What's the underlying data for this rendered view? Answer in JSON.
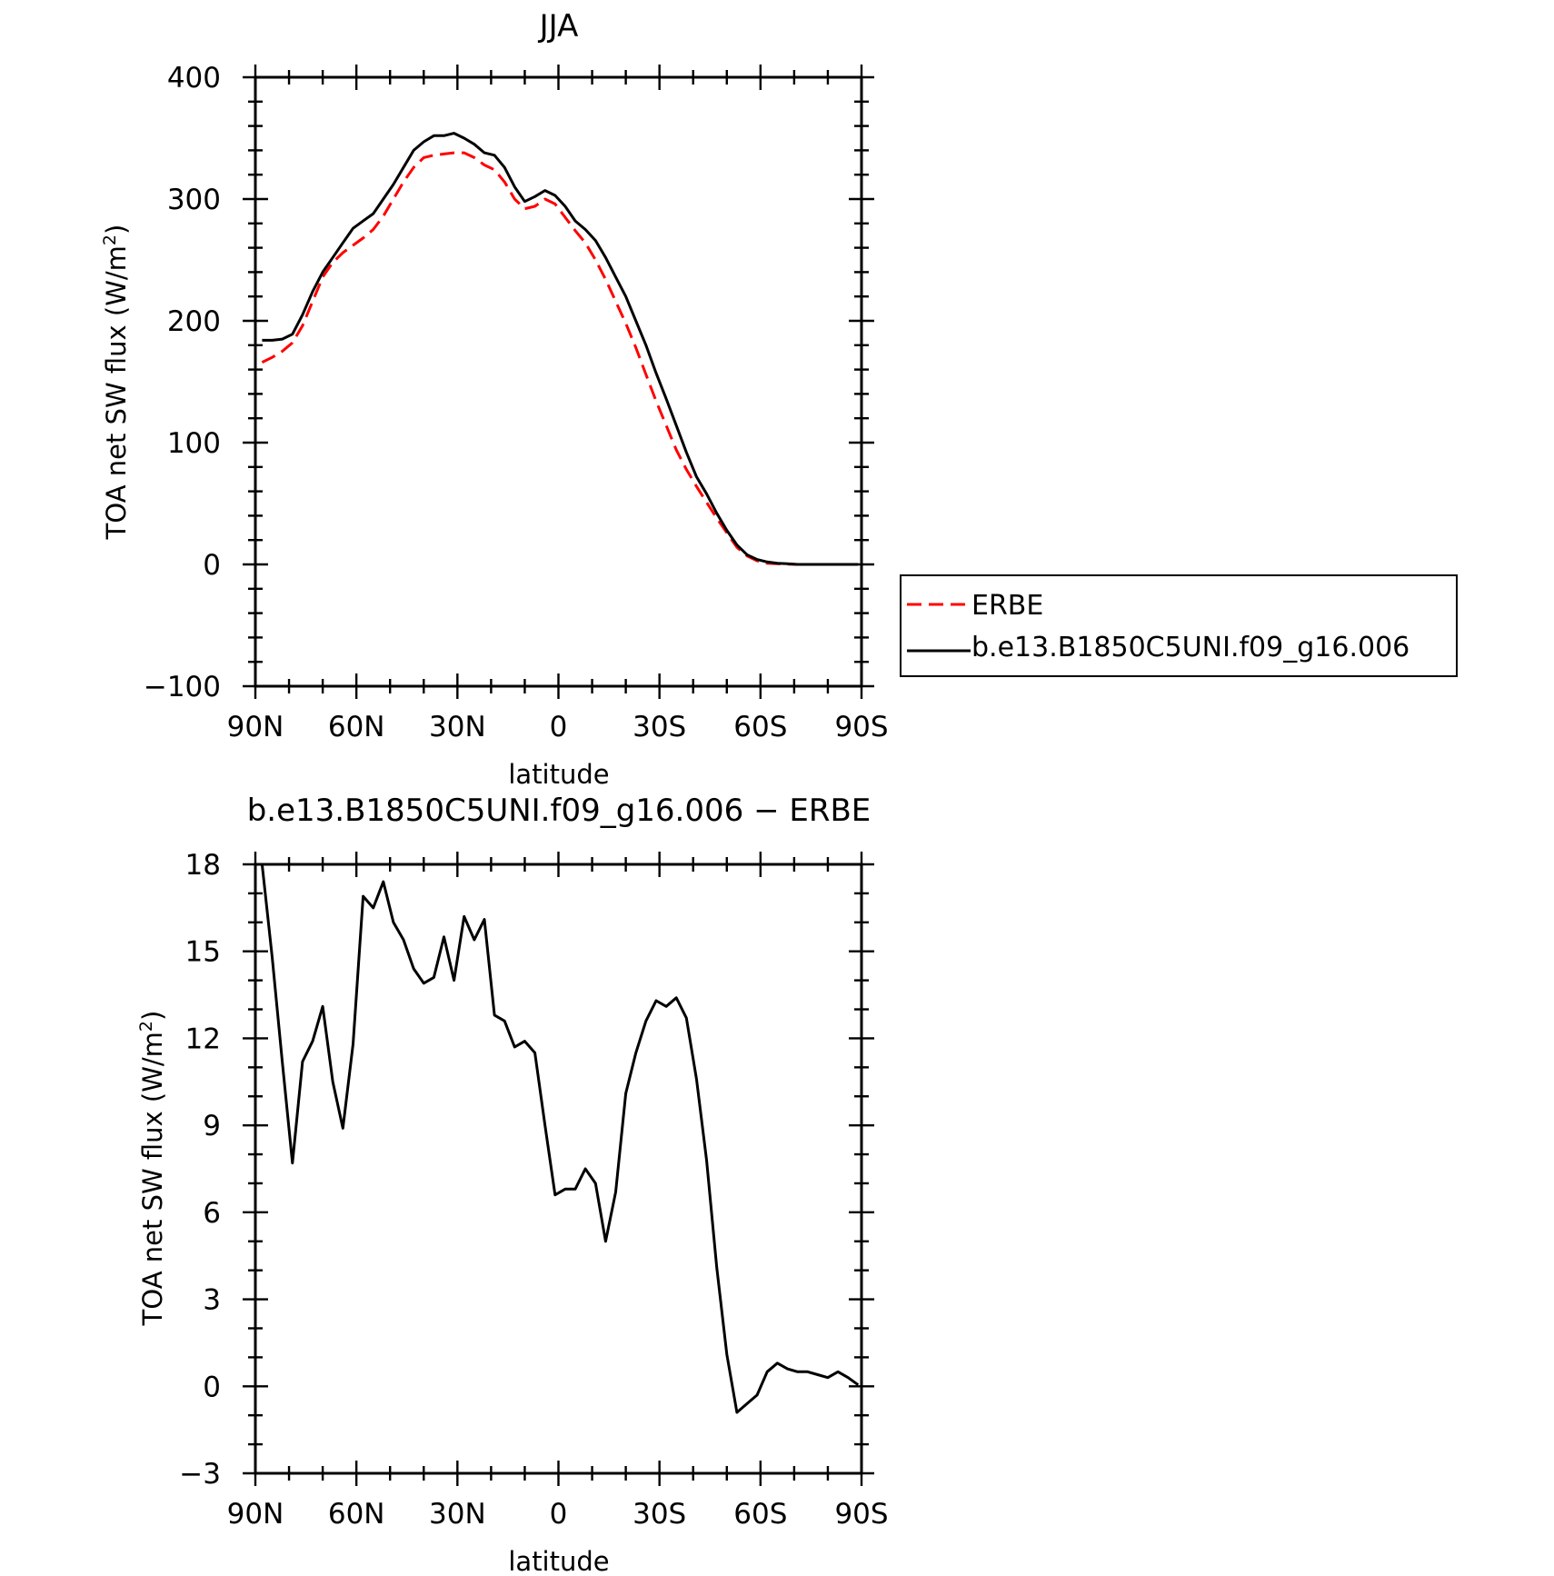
{
  "chart_data": [
    {
      "type": "line",
      "title": "JJA",
      "xlabel": "latitude",
      "ylabel": "TOA net SW flux (W/m",
      "ylabel_sup": "2",
      "ylabel_close": ")",
      "xlim": [
        90,
        -90
      ],
      "ylim": [
        -100,
        400
      ],
      "xticks": [
        90,
        60,
        30,
        0,
        -30,
        -60,
        -90
      ],
      "xtick_labels": [
        "90N",
        "60N",
        "30N",
        "0",
        "30S",
        "60S",
        "90S"
      ],
      "yticks": [
        -100,
        0,
        100,
        200,
        300,
        400
      ],
      "ytick_labels": [
        "−100",
        "0",
        "100",
        "200",
        "300",
        "400"
      ],
      "legend_position": "right",
      "series": [
        {
          "name": "ERBE",
          "color": "#ff0000",
          "dash": "dashed",
          "x": [
            88,
            85,
            82,
            79,
            76,
            73,
            70,
            67,
            64,
            61,
            58,
            55,
            52,
            49,
            46,
            43,
            40,
            37,
            34,
            31,
            28,
            25,
            22,
            19,
            16,
            13,
            10,
            7,
            4,
            1,
            -2,
            -5,
            -8,
            -11,
            -14,
            -17,
            -20,
            -23,
            -26,
            -29,
            -32,
            -35,
            -38,
            -41,
            -44,
            -47,
            -50,
            -53,
            -56,
            -59,
            -62,
            -65,
            -68,
            -71,
            -74,
            -77,
            -80,
            -83,
            -86,
            -89
          ],
          "y": [
            166,
            170,
            175,
            182,
            196,
            216,
            236,
            248,
            256,
            262,
            268,
            275,
            286,
            300,
            314,
            326,
            334,
            336,
            337,
            338,
            338,
            334,
            328,
            324,
            314,
            300,
            292,
            294,
            300,
            296,
            285,
            274,
            264,
            250,
            234,
            216,
            198,
            178,
            156,
            134,
            114,
            94,
            78,
            64,
            51,
            38,
            26,
            14,
            7,
            3,
            1,
            0.5,
            0.2,
            0,
            0,
            0,
            0,
            0,
            0,
            0
          ]
        },
        {
          "name": "b.e13.B1850C5UNI.f09_g16.006",
          "color": "#000000",
          "dash": "solid",
          "x": [
            88,
            85,
            82,
            79,
            76,
            73,
            70,
            67,
            64,
            61,
            58,
            55,
            52,
            49,
            46,
            43,
            40,
            37,
            34,
            31,
            28,
            25,
            22,
            19,
            16,
            13,
            10,
            7,
            4,
            1,
            -2,
            -5,
            -8,
            -11,
            -14,
            -17,
            -20,
            -23,
            -26,
            -29,
            -32,
            -35,
            -38,
            -41,
            -44,
            -47,
            -50,
            -53,
            -56,
            -59,
            -62,
            -65,
            -68,
            -71,
            -74,
            -77,
            -80,
            -83,
            -86,
            -89
          ],
          "y": [
            184,
            184,
            185,
            189,
            205,
            224,
            240,
            252,
            264,
            276,
            282,
            288,
            300,
            312,
            326,
            340,
            347,
            352,
            352,
            354,
            350,
            345,
            338,
            336,
            326,
            310,
            298,
            302,
            307,
            303,
            294,
            282,
            275,
            266,
            252,
            236,
            220,
            200,
            180,
            157,
            136,
            114,
            92,
            72,
            58,
            42,
            28,
            16,
            8,
            4,
            2,
            1,
            0.5,
            0,
            0,
            0,
            0,
            0,
            0,
            0
          ]
        }
      ]
    },
    {
      "type": "line",
      "title": "b.e13.B1850C5UNI.f09_g16.006 − ERBE",
      "xlabel": "latitude",
      "ylabel": "TOA net SW flux (W/m",
      "ylabel_sup": "2",
      "ylabel_close": ")",
      "xlim": [
        90,
        -90
      ],
      "ylim": [
        -3,
        18
      ],
      "xticks": [
        90,
        60,
        30,
        0,
        -30,
        -60,
        -90
      ],
      "xtick_labels": [
        "90N",
        "60N",
        "30N",
        "0",
        "30S",
        "60S",
        "90S"
      ],
      "yticks": [
        -3,
        0,
        3,
        6,
        9,
        12,
        15,
        18
      ],
      "ytick_labels": [
        "−3",
        "0",
        "3",
        "6",
        "9",
        "12",
        "15",
        "18"
      ],
      "series": [
        {
          "color": "#000000",
          "dash": "solid",
          "x": [
            88,
            85,
            82,
            79,
            76,
            73,
            70,
            67,
            64,
            61,
            58,
            55,
            52,
            49,
            46,
            43,
            40,
            37,
            34,
            31,
            28,
            25,
            22,
            19,
            16,
            13,
            10,
            7,
            4,
            1,
            -2,
            -5,
            -8,
            -11,
            -14,
            -17,
            -20,
            -23,
            -26,
            -29,
            -32,
            -35,
            -38,
            -41,
            -44,
            -47,
            -50,
            -53,
            -56,
            -59,
            -62,
            -65,
            -68,
            -71,
            -74,
            -77,
            -80,
            -83,
            -86,
            -89
          ],
          "y": [
            18,
            14.8,
            11.2,
            7.7,
            11.2,
            11.9,
            13.1,
            10.5,
            8.9,
            11.8,
            16.9,
            16.5,
            17.4,
            16,
            15.4,
            14.4,
            13.9,
            14.1,
            15.5,
            14,
            16.2,
            15.4,
            16.1,
            12.8,
            12.6,
            11.7,
            11.9,
            11.5,
            9,
            6.6,
            6.8,
            6.8,
            7.5,
            7,
            5,
            6.7,
            10.1,
            11.5,
            12.6,
            13.3,
            13.1,
            13.4,
            12.7,
            10.6,
            7.8,
            4.1,
            1.1,
            -0.9,
            -0.6,
            -0.3,
            0.5,
            0.8,
            0.6,
            0.5,
            0.5,
            0.4,
            0.3,
            0.5,
            0.3,
            0.05
          ]
        }
      ]
    }
  ]
}
